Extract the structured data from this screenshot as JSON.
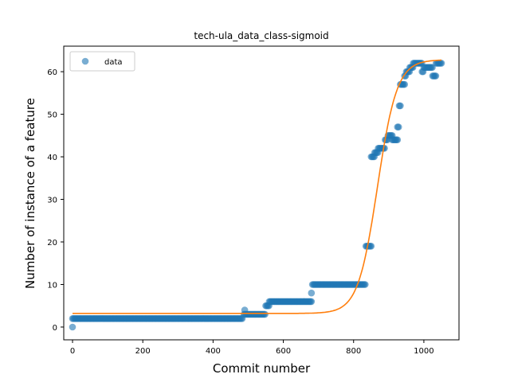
{
  "chart_data": {
    "type": "scatter",
    "title": "tech-ula_data_class-sigmoid",
    "xlabel": "Commit number",
    "ylabel": "Number of instance of a feature",
    "xlim": [
      -25,
      1100
    ],
    "ylim": [
      -3,
      66
    ],
    "xticks": [
      0,
      200,
      400,
      600,
      800,
      1000
    ],
    "yticks": [
      0,
      10,
      20,
      30,
      40,
      50,
      60
    ],
    "legend": {
      "placement": "top-left",
      "entries": [
        "data"
      ]
    },
    "colors": {
      "data": "#1f77b4",
      "fit": "#ff7f0e"
    },
    "series": [
      {
        "name": "data",
        "kind": "scatter",
        "segments": [
          {
            "x": [
              0,
              0
            ],
            "y": 0
          },
          {
            "x": [
              0,
              485
            ],
            "y": 2
          },
          {
            "x": [
              490,
              490
            ],
            "y": 4
          },
          {
            "x": [
              488,
              550
            ],
            "y": 3
          },
          {
            "x": [
              550,
              560
            ],
            "y": 5
          },
          {
            "x": [
              560,
              680
            ],
            "y": 6
          },
          {
            "x": [
              680,
              680
            ],
            "y": 8
          },
          {
            "x": [
              683,
              835
            ],
            "y": 10
          },
          {
            "x": [
              835,
              850
            ],
            "y": 19
          },
          {
            "x": [
              850,
              860
            ],
            "y": 40
          },
          {
            "x": [
              860,
              870
            ],
            "y": 41
          },
          {
            "x": [
              870,
              890
            ],
            "y": 42
          },
          {
            "x": [
              890,
              898
            ],
            "y": 44
          },
          {
            "x": [
              898,
              910
            ],
            "y": 45
          },
          {
            "x": [
              910,
              925
            ],
            "y": 44
          },
          {
            "x": [
              925,
              930
            ],
            "y": 47
          },
          {
            "x": [
              930,
              933
            ],
            "y": 52
          },
          {
            "x": [
              933,
              945
            ],
            "y": 57
          },
          {
            "x": [
              945,
              950
            ],
            "y": 59
          },
          {
            "x": [
              950,
              960
            ],
            "y": 60
          },
          {
            "x": [
              960,
              970
            ],
            "y": 61
          },
          {
            "x": [
              970,
              995
            ],
            "y": 62
          },
          {
            "x": [
              995,
              998
            ],
            "y": 60
          },
          {
            "x": [
              1000,
              1025
            ],
            "y": 61
          },
          {
            "x": [
              1025,
              1035
            ],
            "y": 59
          },
          {
            "x": [
              1035,
              1050
            ],
            "y": 62
          }
        ]
      },
      {
        "name": "",
        "kind": "line",
        "model": "sigmoid",
        "params": {
          "lower": 3.2,
          "upper": 62.8,
          "midpoint": 868,
          "rate": 0.036
        },
        "x_range": [
          0,
          1050
        ]
      }
    ]
  }
}
